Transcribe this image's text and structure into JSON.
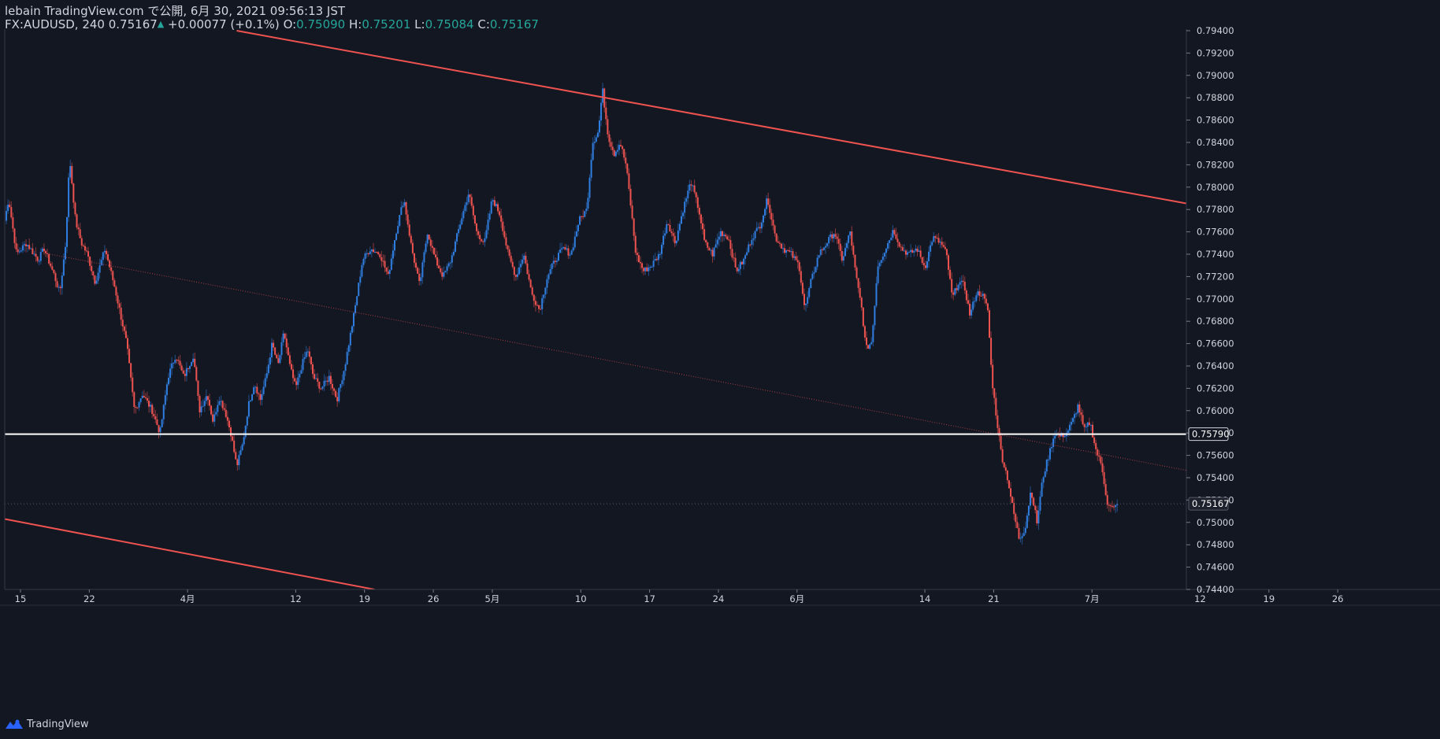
{
  "header": {
    "line1": "lebain TradingView.com で公開, 6月 30, 2021 09:56:13 JST",
    "symbol": "FX:AUDUSD, 240",
    "price": "0.75167",
    "change": "+0.00077 (+0.1%)",
    "o_label": "O:",
    "o_value": "0.75090",
    "h_label": "H:",
    "h_value": "0.75201",
    "l_label": "L:",
    "l_value": "0.75084",
    "c_label": "C:",
    "c_value": "0.75167"
  },
  "logo": {
    "text": "TradingView"
  },
  "colors": {
    "background": "#131722",
    "up": "#2f7ee0",
    "down": "#ef5350",
    "trend": "#ef5350",
    "level": "#ffffff",
    "text": "#d1d4dc"
  },
  "chart_data": {
    "type": "candlestick",
    "title": "FX:AUDUSD, 240",
    "ylim": [
      0.744,
      0.794
    ],
    "y_ticks": [
      "0.79400",
      "0.79200",
      "0.79000",
      "0.78800",
      "0.78600",
      "0.78400",
      "0.78200",
      "0.78000",
      "0.77800",
      "0.77600",
      "0.77400",
      "0.77200",
      "0.77000",
      "0.76800",
      "0.76600",
      "0.76400",
      "0.76200",
      "0.76000",
      "0.75800",
      "0.75600",
      "0.75400",
      "0.75200",
      "0.75000",
      "0.74800",
      "0.74600",
      "0.74400"
    ],
    "x_range_days": [
      -1.6,
      118.6
    ],
    "x_ticks": [
      {
        "label": "15",
        "day": 0
      },
      {
        "label": "22",
        "day": 7
      },
      {
        "label": "4月",
        "day": 17
      },
      {
        "label": "12",
        "day": 28
      },
      {
        "label": "19",
        "day": 35
      },
      {
        "label": "26",
        "day": 42
      },
      {
        "label": "5月",
        "day": 48
      },
      {
        "label": "10",
        "day": 57
      },
      {
        "label": "17",
        "day": 64
      },
      {
        "label": "24",
        "day": 71
      },
      {
        "label": "6月",
        "day": 79
      },
      {
        "label": "14",
        "day": 92
      },
      {
        "label": "21",
        "day": 99
      },
      {
        "label": "7月",
        "day": 109
      },
      {
        "label": "12",
        "day": 120
      },
      {
        "label": "19",
        "day": 127
      },
      {
        "label": "26",
        "day": 134
      }
    ],
    "series": [
      {
        "name": "AUDUSD 4H",
        "close_points": [
          {
            "day": -1.6,
            "close": 0.777
          },
          {
            "day": -1.2,
            "close": 0.779
          },
          {
            "day": -0.4,
            "close": 0.774
          },
          {
            "day": 0.6,
            "close": 0.775
          },
          {
            "day": 1.8,
            "close": 0.7735
          },
          {
            "day": 2.4,
            "close": 0.7745
          },
          {
            "day": 3.4,
            "close": 0.7722
          },
          {
            "day": 4.0,
            "close": 0.7705
          },
          {
            "day": 4.6,
            "close": 0.775
          },
          {
            "day": 5.0,
            "close": 0.7826
          },
          {
            "day": 5.6,
            "close": 0.777
          },
          {
            "day": 6.2,
            "close": 0.775
          },
          {
            "day": 6.8,
            "close": 0.774
          },
          {
            "day": 7.6,
            "close": 0.7715
          },
          {
            "day": 8.6,
            "close": 0.7745
          },
          {
            "day": 9.6,
            "close": 0.771
          },
          {
            "day": 10.8,
            "close": 0.766
          },
          {
            "day": 11.6,
            "close": 0.76
          },
          {
            "day": 12.4,
            "close": 0.7615
          },
          {
            "day": 13.4,
            "close": 0.76
          },
          {
            "day": 14.2,
            "close": 0.758
          },
          {
            "day": 15.0,
            "close": 0.763
          },
          {
            "day": 15.8,
            "close": 0.765
          },
          {
            "day": 16.6,
            "close": 0.763
          },
          {
            "day": 17.6,
            "close": 0.765
          },
          {
            "day": 18.2,
            "close": 0.76
          },
          {
            "day": 19.0,
            "close": 0.7615
          },
          {
            "day": 19.6,
            "close": 0.759
          },
          {
            "day": 20.2,
            "close": 0.7612
          },
          {
            "day": 20.8,
            "close": 0.76
          },
          {
            "day": 21.4,
            "close": 0.758
          },
          {
            "day": 22.0,
            "close": 0.755
          },
          {
            "day": 22.6,
            "close": 0.757
          },
          {
            "day": 23.2,
            "close": 0.7605
          },
          {
            "day": 23.8,
            "close": 0.7625
          },
          {
            "day": 24.4,
            "close": 0.761
          },
          {
            "day": 25.0,
            "close": 0.763
          },
          {
            "day": 25.6,
            "close": 0.766
          },
          {
            "day": 26.2,
            "close": 0.764
          },
          {
            "day": 26.8,
            "close": 0.767
          },
          {
            "day": 27.4,
            "close": 0.764
          },
          {
            "day": 28.0,
            "close": 0.762
          },
          {
            "day": 28.6,
            "close": 0.764
          },
          {
            "day": 29.2,
            "close": 0.7655
          },
          {
            "day": 29.8,
            "close": 0.763
          },
          {
            "day": 30.6,
            "close": 0.762
          },
          {
            "day": 31.4,
            "close": 0.763
          },
          {
            "day": 32.2,
            "close": 0.761
          },
          {
            "day": 33.0,
            "close": 0.764
          },
          {
            "day": 34.0,
            "close": 0.769
          },
          {
            "day": 34.8,
            "close": 0.7735
          },
          {
            "day": 35.6,
            "close": 0.7745
          },
          {
            "day": 36.6,
            "close": 0.774
          },
          {
            "day": 37.4,
            "close": 0.772
          },
          {
            "day": 38.2,
            "close": 0.776
          },
          {
            "day": 39.0,
            "close": 0.779
          },
          {
            "day": 39.8,
            "close": 0.7745
          },
          {
            "day": 40.6,
            "close": 0.7712
          },
          {
            "day": 41.4,
            "close": 0.776
          },
          {
            "day": 42.2,
            "close": 0.7735
          },
          {
            "day": 43.0,
            "close": 0.772
          },
          {
            "day": 43.8,
            "close": 0.7735
          },
          {
            "day": 44.8,
            "close": 0.777
          },
          {
            "day": 45.6,
            "close": 0.7795
          },
          {
            "day": 46.4,
            "close": 0.776
          },
          {
            "day": 47.2,
            "close": 0.775
          },
          {
            "day": 48.0,
            "close": 0.779
          },
          {
            "day": 48.8,
            "close": 0.7775
          },
          {
            "day": 49.6,
            "close": 0.774
          },
          {
            "day": 50.4,
            "close": 0.772
          },
          {
            "day": 51.2,
            "close": 0.774
          },
          {
            "day": 52.0,
            "close": 0.7705
          },
          {
            "day": 52.8,
            "close": 0.769
          },
          {
            "day": 53.6,
            "close": 0.772
          },
          {
            "day": 54.4,
            "close": 0.7735
          },
          {
            "day": 55.2,
            "close": 0.7745
          },
          {
            "day": 56.0,
            "close": 0.774
          },
          {
            "day": 56.8,
            "close": 0.777
          },
          {
            "day": 57.6,
            "close": 0.778
          },
          {
            "day": 58.2,
            "close": 0.784
          },
          {
            "day": 58.8,
            "close": 0.785
          },
          {
            "day": 59.2,
            "close": 0.7888
          },
          {
            "day": 59.8,
            "close": 0.7845
          },
          {
            "day": 60.4,
            "close": 0.783
          },
          {
            "day": 61.0,
            "close": 0.784
          },
          {
            "day": 61.6,
            "close": 0.782
          },
          {
            "day": 62.0,
            "close": 0.779
          },
          {
            "day": 62.6,
            "close": 0.774
          },
          {
            "day": 63.4,
            "close": 0.7725
          },
          {
            "day": 64.2,
            "close": 0.773
          },
          {
            "day": 65.0,
            "close": 0.774
          },
          {
            "day": 65.8,
            "close": 0.777
          },
          {
            "day": 66.6,
            "close": 0.775
          },
          {
            "day": 67.4,
            "close": 0.778
          },
          {
            "day": 68.2,
            "close": 0.7805
          },
          {
            "day": 69.0,
            "close": 0.778
          },
          {
            "day": 69.6,
            "close": 0.775
          },
          {
            "day": 70.4,
            "close": 0.774
          },
          {
            "day": 71.2,
            "close": 0.776
          },
          {
            "day": 72.0,
            "close": 0.7755
          },
          {
            "day": 72.8,
            "close": 0.7725
          },
          {
            "day": 73.6,
            "close": 0.7735
          },
          {
            "day": 74.4,
            "close": 0.7755
          },
          {
            "day": 75.2,
            "close": 0.7765
          },
          {
            "day": 76.0,
            "close": 0.779
          },
          {
            "day": 76.8,
            "close": 0.7755
          },
          {
            "day": 77.6,
            "close": 0.7745
          },
          {
            "day": 78.4,
            "close": 0.774
          },
          {
            "day": 79.2,
            "close": 0.773
          },
          {
            "day": 79.8,
            "close": 0.769
          },
          {
            "day": 80.4,
            "close": 0.7715
          },
          {
            "day": 81.2,
            "close": 0.774
          },
          {
            "day": 82.0,
            "close": 0.775
          },
          {
            "day": 82.8,
            "close": 0.776
          },
          {
            "day": 83.6,
            "close": 0.7735
          },
          {
            "day": 84.4,
            "close": 0.776
          },
          {
            "day": 85.0,
            "close": 0.772
          },
          {
            "day": 85.6,
            "close": 0.769
          },
          {
            "day": 86.0,
            "close": 0.7655
          },
          {
            "day": 86.6,
            "close": 0.7662
          },
          {
            "day": 87.2,
            "close": 0.773
          },
          {
            "day": 88.0,
            "close": 0.7745
          },
          {
            "day": 88.8,
            "close": 0.7762
          },
          {
            "day": 89.6,
            "close": 0.7745
          },
          {
            "day": 90.4,
            "close": 0.774
          },
          {
            "day": 91.2,
            "close": 0.7745
          },
          {
            "day": 92.0,
            "close": 0.7728
          },
          {
            "day": 92.8,
            "close": 0.7755
          },
          {
            "day": 93.6,
            "close": 0.775
          },
          {
            "day": 94.2,
            "close": 0.774
          },
          {
            "day": 94.8,
            "close": 0.77
          },
          {
            "day": 95.4,
            "close": 0.7715
          },
          {
            "day": 96.0,
            "close": 0.7712
          },
          {
            "day": 96.6,
            "close": 0.7685
          },
          {
            "day": 97.2,
            "close": 0.7705
          },
          {
            "day": 97.8,
            "close": 0.7705
          },
          {
            "day": 98.4,
            "close": 0.769
          },
          {
            "day": 98.8,
            "close": 0.763
          },
          {
            "day": 99.2,
            "close": 0.76
          },
          {
            "day": 99.8,
            "close": 0.756
          },
          {
            "day": 100.4,
            "close": 0.754
          },
          {
            "day": 101.0,
            "close": 0.751
          },
          {
            "day": 101.6,
            "close": 0.7485
          },
          {
            "day": 102.2,
            "close": 0.7495
          },
          {
            "day": 102.8,
            "close": 0.753
          },
          {
            "day": 103.4,
            "close": 0.75
          },
          {
            "day": 104.0,
            "close": 0.754
          },
          {
            "day": 104.6,
            "close": 0.756
          },
          {
            "day": 105.2,
            "close": 0.758
          },
          {
            "day": 105.8,
            "close": 0.7577
          },
          {
            "day": 106.4,
            "close": 0.758
          },
          {
            "day": 107.0,
            "close": 0.759
          },
          {
            "day": 107.6,
            "close": 0.7605
          },
          {
            "day": 108.2,
            "close": 0.7582
          },
          {
            "day": 108.8,
            "close": 0.759
          },
          {
            "day": 109.4,
            "close": 0.7565
          },
          {
            "day": 110.0,
            "close": 0.755
          },
          {
            "day": 110.6,
            "close": 0.7515
          },
          {
            "day": 111.2,
            "close": 0.7512
          },
          {
            "day": 111.6,
            "close": 0.75167
          }
        ]
      }
    ],
    "last_price": 0.75167,
    "last_price_label": "0.75167",
    "horizontal_level": 0.7579,
    "horizontal_level_label": "0.75790",
    "trendlines": [
      {
        "name": "channel-upper",
        "style": "solid",
        "from": {
          "day": 22.0,
          "price": 0.794
        },
        "to": {
          "day": 134.5,
          "price": 0.776
        }
      },
      {
        "name": "channel-middle",
        "style": "dotted",
        "from": {
          "day": 3.0,
          "price": 0.774
        },
        "to": {
          "day": 134.5,
          "price": 0.752
        }
      },
      {
        "name": "channel-lower",
        "style": "solid",
        "from": {
          "day": -1.6,
          "price": 0.7503
        },
        "to": {
          "day": 36.0,
          "price": 0.744
        }
      }
    ],
    "xlabel": "",
    "ylabel": "",
    "legend": "none",
    "grid": false
  }
}
